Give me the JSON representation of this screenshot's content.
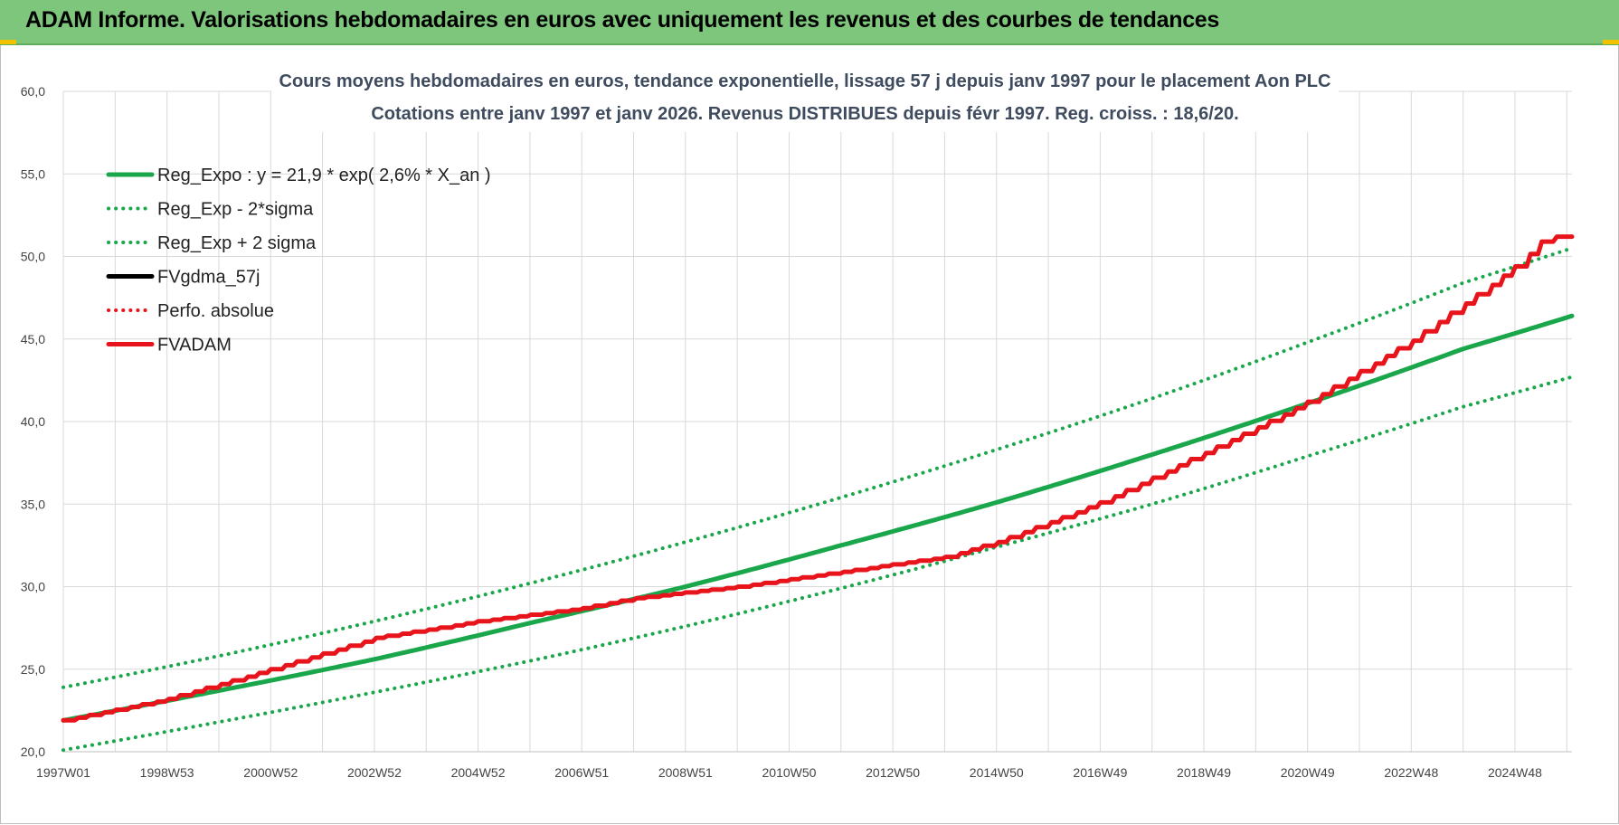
{
  "banner": {
    "title": "ADAM Informe. Valorisations hebdomadaires en euros avec uniquement les revenus et des courbes de tendances"
  },
  "colors": {
    "banner_bg": "#7dc67b",
    "green": "#1aa64a",
    "red": "#e8141c",
    "black": "#000000",
    "grid": "#d9d9d9"
  },
  "chart_data": {
    "type": "line",
    "title": "Cours moyens hebdomadaires en euros, tendance exponentielle, lissage 57 j depuis janv 1997 pour le placement Aon PLC",
    "subtitle": "Cotations entre janv 1997 et janv 2026. Revenus DISTRIBUES depuis févr 1997. Reg. croiss. : 18,6/20.",
    "xlabel": "",
    "ylabel": "",
    "x_range": [
      1997.0,
      2026.1
    ],
    "ylim": [
      20,
      60
    ],
    "y_ticks": [
      "20,0",
      "25,0",
      "30,0",
      "35,0",
      "40,0",
      "45,0",
      "50,0",
      "55,0",
      "60,0"
    ],
    "x_tick_labels": [
      "1997W01",
      "1998W53",
      "2000W52",
      "2002W52",
      "2004W52",
      "2006W51",
      "2008W51",
      "2010W50",
      "2012W50",
      "2014W50",
      "2016W49",
      "2018W49",
      "2020W49",
      "2022W48",
      "2024W48"
    ],
    "x_tick_positions": [
      1997.0,
      1999.0,
      2001.0,
      2003.0,
      2005.0,
      2007.0,
      2009.0,
      2011.0,
      2013.0,
      2015.0,
      2017.0,
      2019.0,
      2021.0,
      2023.0,
      2025.0
    ],
    "grid": true,
    "legend_position": "top-left",
    "series": [
      {
        "name": "Reg_Expo : y = 21,9 * exp( 2,6% *  X_an )",
        "color": "#1aa64a",
        "style": "solid",
        "x": [
          1997,
          2000,
          2003,
          2006,
          2009,
          2012,
          2015,
          2018,
          2021,
          2024,
          2026.1
        ],
        "y": [
          21.9,
          23.7,
          25.6,
          27.8,
          30.0,
          32.5,
          35.1,
          38.0,
          41.1,
          44.4,
          46.4
        ]
      },
      {
        "name": "Reg_Exp - 2*sigma",
        "color": "#1aa64a",
        "style": "dotted",
        "x": [
          1997,
          2000,
          2003,
          2006,
          2009,
          2012,
          2015,
          2018,
          2021,
          2024,
          2026.1
        ],
        "y": [
          20.1,
          21.8,
          23.6,
          25.5,
          27.6,
          29.9,
          32.4,
          35.0,
          37.9,
          40.9,
          42.7
        ]
      },
      {
        "name": "Reg_Exp + 2 sigma",
        "color": "#1aa64a",
        "style": "dotted",
        "x": [
          1997,
          2000,
          2003,
          2006,
          2009,
          2012,
          2015,
          2018,
          2021,
          2024,
          2026.1
        ],
        "y": [
          23.9,
          25.8,
          27.9,
          30.2,
          32.7,
          35.4,
          38.3,
          41.4,
          44.8,
          48.4,
          50.5
        ]
      },
      {
        "name": "FVgdma_57j",
        "color": "#000000",
        "style": "solid",
        "x": [
          1997,
          1999,
          2001,
          2003,
          2005,
          2007,
          2008,
          2010,
          2012,
          2014,
          2015,
          2017,
          2019,
          2021,
          2023,
          2025,
          2025.6,
          2026.1
        ],
        "y": [
          21.9,
          23.2,
          25.0,
          26.9,
          27.9,
          28.7,
          29.3,
          30.0,
          30.9,
          31.8,
          32.7,
          35.1,
          38.1,
          41.2,
          44.9,
          49.4,
          51.2,
          51.2
        ]
      },
      {
        "name": "Perfo. absolue",
        "color": "#e8141c",
        "style": "dotted",
        "x": [
          1997,
          1999,
          2001,
          2003,
          2005,
          2007,
          2008,
          2010,
          2012,
          2014,
          2015,
          2017,
          2019,
          2021,
          2023,
          2025,
          2025.6,
          2026.1
        ],
        "y": [
          21.9,
          23.2,
          25.0,
          26.9,
          27.9,
          28.7,
          29.3,
          30.0,
          30.9,
          31.8,
          32.7,
          35.1,
          38.1,
          41.2,
          44.9,
          49.4,
          51.2,
          51.2
        ]
      },
      {
        "name": "FVADAM",
        "color": "#e8141c",
        "style": "solid",
        "x": [
          1997,
          1999,
          2001,
          2003,
          2005,
          2007,
          2008,
          2010,
          2012,
          2014,
          2015,
          2017,
          2019,
          2021,
          2023,
          2025,
          2025.6,
          2026.1
        ],
        "y": [
          21.9,
          23.2,
          25.0,
          26.9,
          27.9,
          28.7,
          29.3,
          30.0,
          30.9,
          31.8,
          32.7,
          35.1,
          38.1,
          41.2,
          44.9,
          49.4,
          51.2,
          51.2
        ]
      }
    ]
  }
}
